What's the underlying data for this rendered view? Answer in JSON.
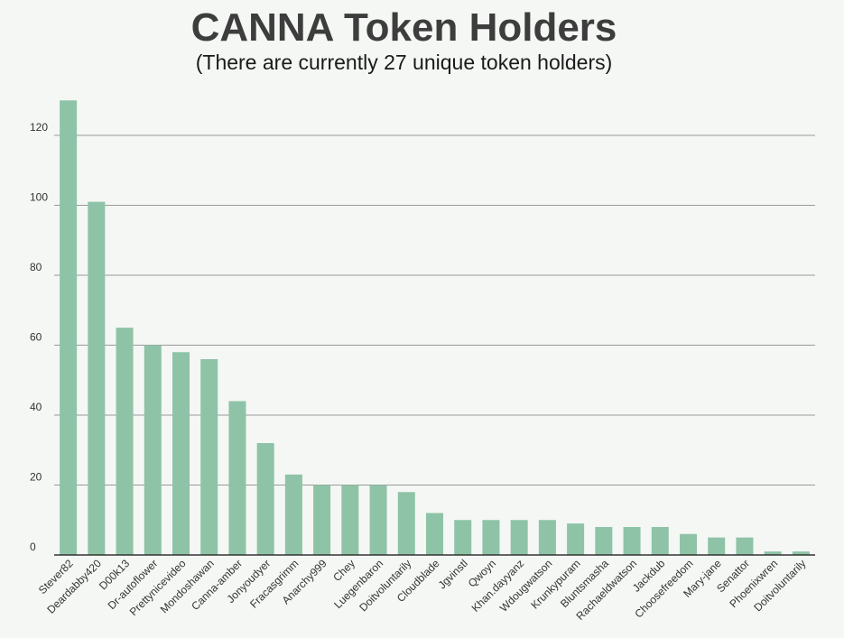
{
  "chart_data": {
    "type": "bar",
    "title": "CANNA Token Holders",
    "subtitle": "(There are currently 27 unique token holders)",
    "xlabel": "",
    "ylabel": "",
    "ylim": [
      0,
      130
    ],
    "yticks": [
      0,
      20,
      40,
      60,
      80,
      100,
      120
    ],
    "grid": true,
    "legend": "none",
    "bar_color": "#8ec3a7",
    "categories": [
      "Stever82",
      "Deardabby420",
      "D00k13",
      "Dr-autoflower",
      "Prettynicevideo",
      "Mondoshawan",
      "Canna-amber",
      "Jonyoudyer",
      "Fracasgrimm",
      "Anarchy999",
      "Chey",
      "Luegenbaron",
      "Doitvoluntarily",
      "Cloudblade",
      "Jgvinstl",
      "Qwoyn",
      "Khan.dayyanz",
      "Wdougwatson",
      "Krunkypuram",
      "Bluntsmasha",
      "Rachaeldwatson",
      "Jackdub",
      "Choosefreedom",
      "Mary-jane",
      "Senattor",
      "Phoenixwren",
      "Doitvoluntarily"
    ],
    "values": [
      130,
      101,
      65,
      60,
      58,
      56,
      44,
      32,
      23,
      20,
      20,
      20,
      18,
      12,
      10,
      10,
      10,
      10,
      9,
      8,
      8,
      8,
      6,
      5,
      5,
      1,
      1
    ]
  }
}
